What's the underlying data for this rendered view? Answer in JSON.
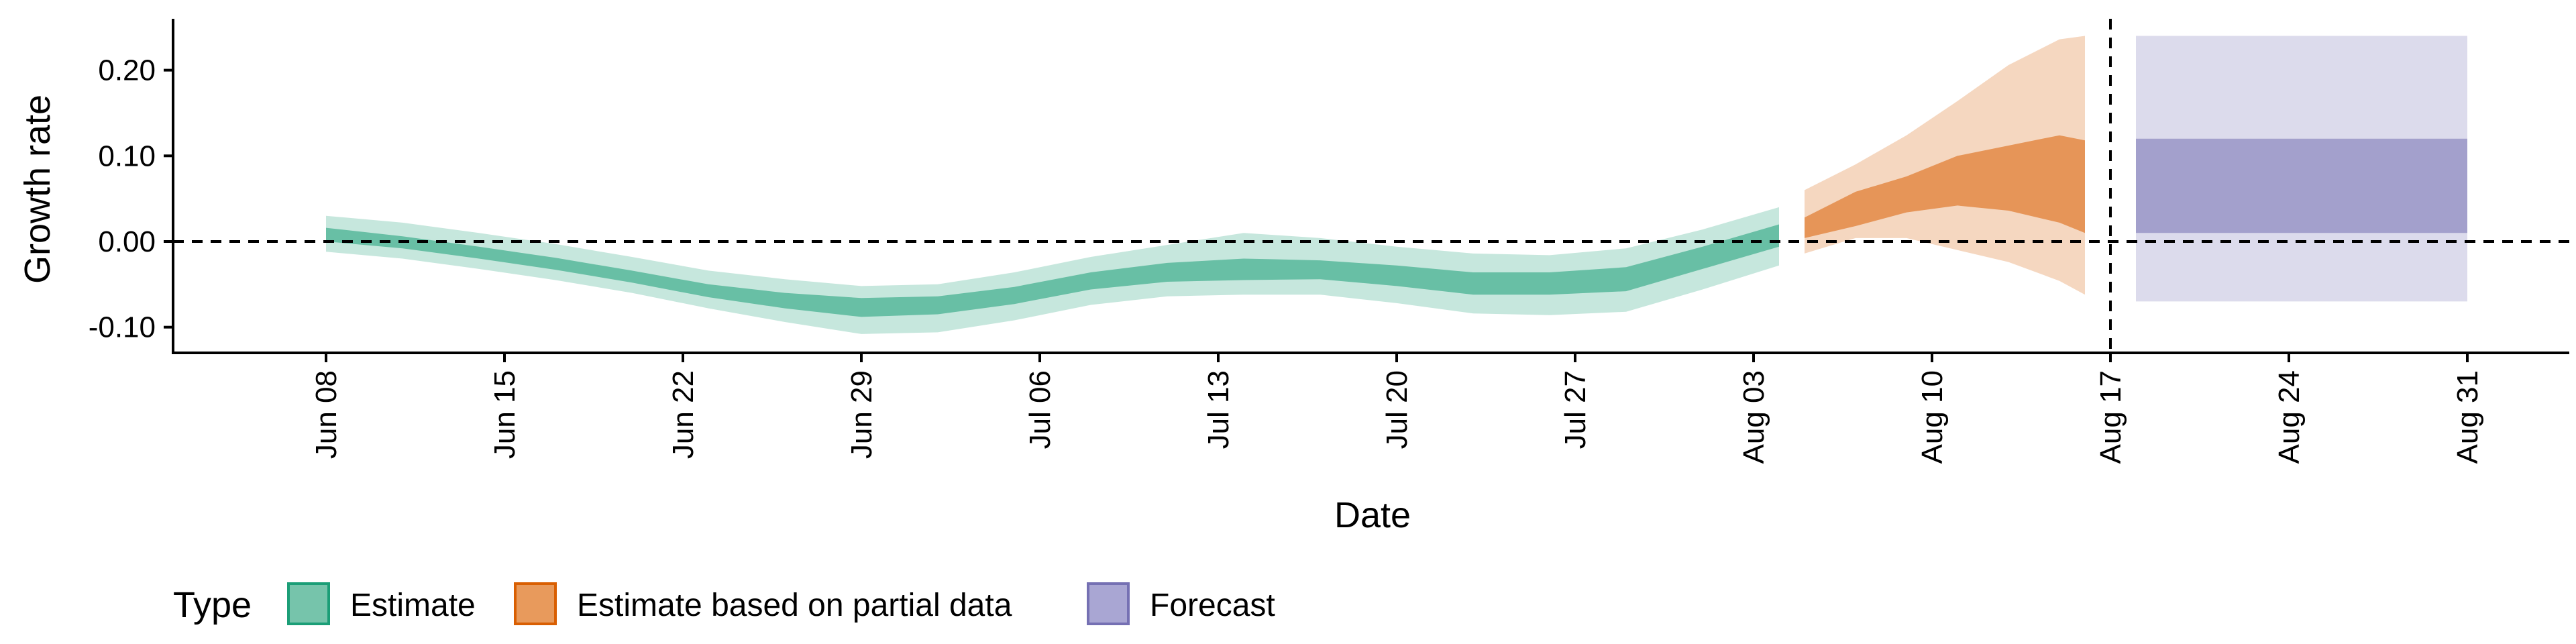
{
  "chart_data": {
    "type": "area",
    "xlabel": "Date",
    "ylabel": "Growth rate",
    "ylim": [
      -0.13,
      0.26
    ],
    "xlim": [
      "2021-06-02",
      "2021-09-04"
    ],
    "x_ticks": [
      {
        "date": "2021-06-08",
        "label": "Jun 08"
      },
      {
        "date": "2021-06-15",
        "label": "Jun 15"
      },
      {
        "date": "2021-06-22",
        "label": "Jun 22"
      },
      {
        "date": "2021-06-29",
        "label": "Jun 29"
      },
      {
        "date": "2021-07-06",
        "label": "Jul 06"
      },
      {
        "date": "2021-07-13",
        "label": "Jul 13"
      },
      {
        "date": "2021-07-20",
        "label": "Jul 20"
      },
      {
        "date": "2021-07-27",
        "label": "Jul 27"
      },
      {
        "date": "2021-08-03",
        "label": "Aug 03"
      },
      {
        "date": "2021-08-10",
        "label": "Aug 10"
      },
      {
        "date": "2021-08-17",
        "label": "Aug 17"
      },
      {
        "date": "2021-08-24",
        "label": "Aug 24"
      },
      {
        "date": "2021-08-31",
        "label": "Aug 31"
      }
    ],
    "y_ticks": [
      {
        "value": -0.1,
        "label": "-0.10"
      },
      {
        "value": 0.0,
        "label": "0.00"
      },
      {
        "value": 0.1,
        "label": "0.10"
      },
      {
        "value": 0.2,
        "label": "0.20"
      }
    ],
    "reference_lines": {
      "horizontal_y": 0.0,
      "vertical_date": "2021-08-17"
    },
    "grid": false,
    "legend": {
      "position": "bottom-left",
      "title": "Type"
    },
    "series": [
      {
        "name": "Estimate",
        "color": "#1b9e77",
        "points": [
          {
            "x": "2021-06-08",
            "lo90": -0.012,
            "lo50": 0.0,
            "hi50": 0.016,
            "hi90": 0.03
          },
          {
            "x": "2021-06-11",
            "lo90": -0.02,
            "lo50": -0.008,
            "hi50": 0.006,
            "hi90": 0.022
          },
          {
            "x": "2021-06-14",
            "lo90": -0.032,
            "lo50": -0.02,
            "hi50": -0.006,
            "hi90": 0.01
          },
          {
            "x": "2021-06-17",
            "lo90": -0.045,
            "lo50": -0.033,
            "hi50": -0.019,
            "hi90": -0.003
          },
          {
            "x": "2021-06-20",
            "lo90": -0.06,
            "lo50": -0.048,
            "hi50": -0.034,
            "hi90": -0.018
          },
          {
            "x": "2021-06-23",
            "lo90": -0.078,
            "lo50": -0.065,
            "hi50": -0.05,
            "hi90": -0.034
          },
          {
            "x": "2021-06-26",
            "lo90": -0.094,
            "lo50": -0.078,
            "hi50": -0.06,
            "hi90": -0.044
          },
          {
            "x": "2021-06-29",
            "lo90": -0.108,
            "lo50": -0.088,
            "hi50": -0.066,
            "hi90": -0.052
          },
          {
            "x": "2021-07-02",
            "lo90": -0.106,
            "lo50": -0.085,
            "hi50": -0.064,
            "hi90": -0.05
          },
          {
            "x": "2021-07-05",
            "lo90": -0.092,
            "lo50": -0.073,
            "hi50": -0.053,
            "hi90": -0.036
          },
          {
            "x": "2021-07-08",
            "lo90": -0.074,
            "lo50": -0.056,
            "hi50": -0.036,
            "hi90": -0.018
          },
          {
            "x": "2021-07-11",
            "lo90": -0.064,
            "lo50": -0.047,
            "hi50": -0.025,
            "hi90": -0.004
          },
          {
            "x": "2021-07-14",
            "lo90": -0.062,
            "lo50": -0.045,
            "hi50": -0.02,
            "hi90": 0.01
          },
          {
            "x": "2021-07-17",
            "lo90": -0.062,
            "lo50": -0.044,
            "hi50": -0.022,
            "hi90": 0.004
          },
          {
            "x": "2021-07-20",
            "lo90": -0.072,
            "lo50": -0.052,
            "hi50": -0.028,
            "hi90": -0.006
          },
          {
            "x": "2021-07-23",
            "lo90": -0.084,
            "lo50": -0.062,
            "hi50": -0.036,
            "hi90": -0.014
          },
          {
            "x": "2021-07-26",
            "lo90": -0.086,
            "lo50": -0.062,
            "hi50": -0.036,
            "hi90": -0.016
          },
          {
            "x": "2021-07-29",
            "lo90": -0.082,
            "lo50": -0.058,
            "hi50": -0.03,
            "hi90": -0.008
          },
          {
            "x": "2021-08-01",
            "lo90": -0.056,
            "lo50": -0.032,
            "hi50": -0.006,
            "hi90": 0.014
          },
          {
            "x": "2021-08-04",
            "lo90": -0.028,
            "lo50": -0.006,
            "hi50": 0.02,
            "hi90": 0.04
          }
        ]
      },
      {
        "name": "Estimate based on partial data",
        "color": "#d95f02",
        "points": [
          {
            "x": "2021-08-05",
            "lo90": -0.014,
            "lo50": 0.004,
            "hi50": 0.028,
            "hi90": 0.06
          },
          {
            "x": "2021-08-07",
            "lo90": 0.004,
            "lo50": 0.018,
            "hi50": 0.058,
            "hi90": 0.09
          },
          {
            "x": "2021-08-09",
            "lo90": 0.004,
            "lo50": 0.034,
            "hi50": 0.076,
            "hi90": 0.124
          },
          {
            "x": "2021-08-11",
            "lo90": -0.01,
            "lo50": 0.042,
            "hi50": 0.1,
            "hi90": 0.164
          },
          {
            "x": "2021-08-13",
            "lo90": -0.024,
            "lo50": 0.036,
            "hi50": 0.112,
            "hi90": 0.206
          },
          {
            "x": "2021-08-15",
            "lo90": -0.046,
            "lo50": 0.022,
            "hi50": 0.124,
            "hi90": 0.236
          },
          {
            "x": "2021-08-16",
            "lo90": -0.062,
            "lo50": 0.01,
            "hi50": 0.118,
            "hi90": 0.24
          }
        ]
      },
      {
        "name": "Forecast",
        "color": "#7570b3",
        "points": [
          {
            "x": "2021-08-18",
            "lo90": -0.07,
            "lo50": 0.01,
            "hi50": 0.12,
            "hi90": 0.24
          },
          {
            "x": "2021-08-31",
            "lo90": -0.07,
            "lo50": 0.01,
            "hi50": 0.12,
            "hi90": 0.24
          }
        ]
      }
    ]
  }
}
